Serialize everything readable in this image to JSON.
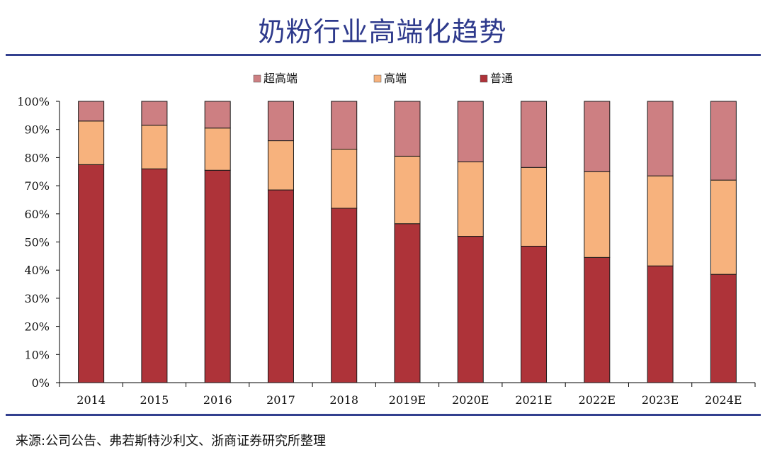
{
  "page": {
    "title": "奶粉行业高端化趋势",
    "source": "来源:公司公告、弗若斯特沙利文、浙商证券研究所整理"
  },
  "colors": {
    "super_premium": "#cd7f82",
    "premium": "#f7b27d",
    "regular": "#ae3339",
    "title": "#2e3a8c",
    "rule": "#33408f"
  },
  "chart_data": {
    "type": "bar",
    "stacked": true,
    "title": "奶粉行业高端化趋势",
    "xlabel": "",
    "ylabel": "",
    "ylim": [
      0,
      100
    ],
    "y_ticks": [
      "0%",
      "10%",
      "20%",
      "30%",
      "40%",
      "50%",
      "60%",
      "70%",
      "80%",
      "90%",
      "100%"
    ],
    "categories": [
      "2014",
      "2015",
      "2016",
      "2017",
      "2018",
      "2019E",
      "2020E",
      "2021E",
      "2022E",
      "2023E",
      "2024E"
    ],
    "legend_position": "top",
    "series": [
      {
        "name": "普通",
        "key": "regular",
        "values": [
          77.5,
          76,
          75.5,
          68.5,
          62,
          56.5,
          52,
          48.5,
          44.5,
          41.5,
          38.5
        ]
      },
      {
        "name": "高端",
        "key": "premium",
        "values": [
          15.5,
          15.5,
          15,
          17.5,
          21,
          24,
          26.5,
          28,
          30.5,
          32,
          33.5
        ]
      },
      {
        "name": "超高端",
        "key": "super_premium",
        "values": [
          7,
          8.5,
          9.5,
          14,
          17,
          19.5,
          21.5,
          23.5,
          25,
          26.5,
          28
        ]
      }
    ],
    "legend_order": [
      "超高端",
      "高端",
      "普通"
    ]
  }
}
